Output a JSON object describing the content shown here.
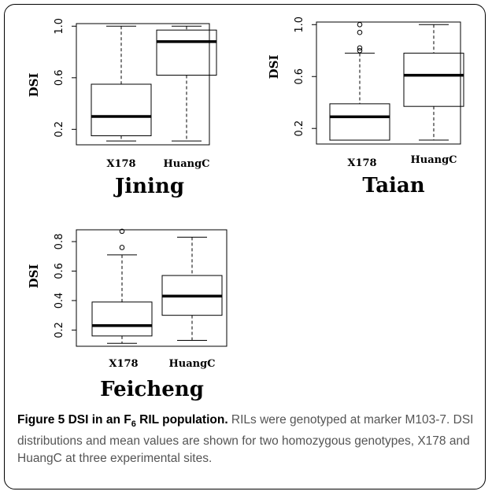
{
  "caption": {
    "title_prefix": "Figure 5 DSI in an F",
    "title_sub": "6",
    "title_suffix": " RIL population.",
    "body": " RILs were genotyped at marker M103-7. DSI distributions and mean values are shown for two homozygous genotypes, X178 and HuangC at three experimental sites."
  },
  "chart_data": [
    {
      "type": "boxplot",
      "title": "Jining",
      "ylabel": "DSI",
      "ylim": [
        0.08,
        1.02
      ],
      "yticks": [
        0.2,
        0.6,
        1.0
      ],
      "ytick_labels": [
        "0.2",
        "0.6",
        "1.0"
      ],
      "categories": [
        "X178",
        "HuangC"
      ],
      "boxes": [
        {
          "name": "X178",
          "whisker_low": 0.11,
          "q1": 0.15,
          "median": 0.3,
          "q3": 0.55,
          "whisker_high": 1.0,
          "outliers": []
        },
        {
          "name": "HuangC",
          "whisker_low": 0.11,
          "q1": 0.62,
          "median": 0.88,
          "q3": 0.97,
          "whisker_high": 1.0,
          "outliers": []
        }
      ]
    },
    {
      "type": "boxplot",
      "title": "Taian",
      "ylabel": "DSI",
      "ylim": [
        0.08,
        1.02
      ],
      "yticks": [
        0.2,
        0.6,
        1.0
      ],
      "ytick_labels": [
        "0.2",
        "0.6",
        "1.0"
      ],
      "categories": [
        "X178",
        "HuangC"
      ],
      "boxes": [
        {
          "name": "X178",
          "whisker_low": 0.11,
          "q1": 0.11,
          "median": 0.29,
          "q3": 0.39,
          "whisker_high": 0.78,
          "outliers": [
            0.8,
            0.82,
            0.94,
            1.0
          ]
        },
        {
          "name": "HuangC",
          "whisker_low": 0.11,
          "q1": 0.37,
          "median": 0.61,
          "q3": 0.78,
          "whisker_high": 1.0,
          "outliers": []
        }
      ]
    },
    {
      "type": "boxplot",
      "title": "Feicheng",
      "ylabel": "DSI",
      "ylim": [
        0.09,
        0.88
      ],
      "yticks": [
        0.2,
        0.4,
        0.6,
        0.8
      ],
      "ytick_labels": [
        "0.2",
        "0.4",
        "0.6",
        "0.8"
      ],
      "categories": [
        "X178",
        "HuangC"
      ],
      "boxes": [
        {
          "name": "X178",
          "whisker_low": 0.11,
          "q1": 0.16,
          "median": 0.23,
          "q3": 0.39,
          "whisker_high": 0.71,
          "outliers": [
            0.76,
            0.87
          ]
        },
        {
          "name": "HuangC",
          "whisker_low": 0.13,
          "q1": 0.3,
          "median": 0.43,
          "q3": 0.57,
          "whisker_high": 0.83,
          "outliers": []
        }
      ]
    }
  ]
}
